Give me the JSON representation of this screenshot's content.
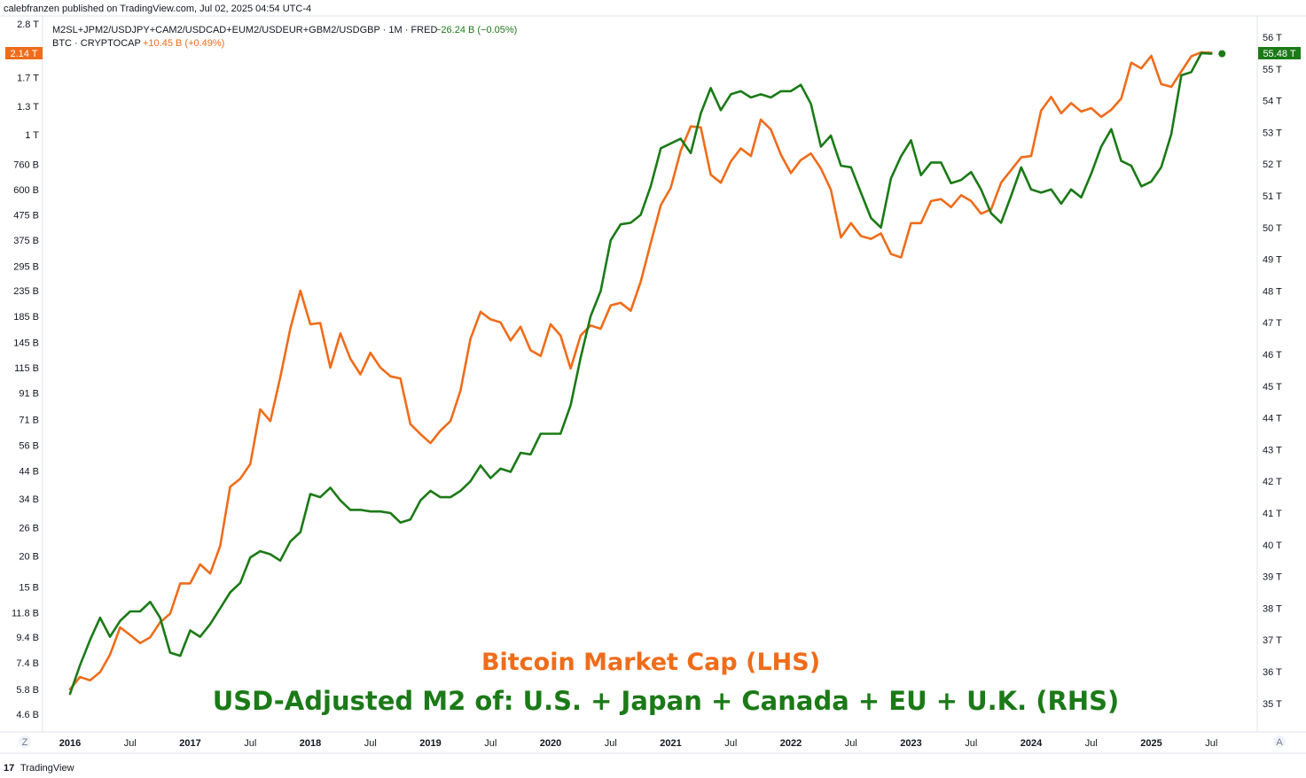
{
  "header": {
    "publish_line": "calebfranzen published on TradingView.com, Jul 02, 2025 04:54 UTC-4",
    "m2_symbol": "M2SL+JPM2/USDJPY+CAM2/USDCAD+EUM2/USDEUR+GBM2/USDGBP · 1M · FRED",
    "m2_change": "−26.24 B (−0.05%)",
    "btc_symbol": "BTC · CRYPTOCAP",
    "btc_change": "+10.45 B (+0.49%)"
  },
  "colors": {
    "btc": "#ef6c1a",
    "m2": "#1b7a17",
    "axis_text": "#131722"
  },
  "overlay": {
    "line1": "Bitcoin Market Cap (LHS)",
    "line2": "USD-Adjusted M2 of: U.S. + Japan + Canada + EU + U.K. (RHS)"
  },
  "footer": {
    "logo_mark": "17",
    "logo_text": "TradingView",
    "z_button": "Z",
    "a_button": "A"
  },
  "chart_data": {
    "type": "line",
    "title": "",
    "left_axis": {
      "scale": "log",
      "ticks": [
        "2.8 T",
        "1.7 T",
        "1.3 T",
        "1 T",
        "760 B",
        "600 B",
        "475 B",
        "375 B",
        "295 B",
        "235 B",
        "185 B",
        "145 B",
        "115 B",
        "91 B",
        "71 B",
        "56 B",
        "44 B",
        "34 B",
        "26 B",
        "20 B",
        "15 B",
        "11.8 B",
        "9.4 B",
        "7.4 B",
        "5.8 B",
        "4.6 B"
      ],
      "tick_values": [
        2800,
        1700,
        1300,
        1000,
        760,
        600,
        475,
        375,
        295,
        235,
        185,
        145,
        115,
        91,
        71,
        56,
        44,
        34,
        26,
        20,
        15,
        11.8,
        9.4,
        7.4,
        5.8,
        4.6
      ],
      "last_value_label": "2.14 T"
    },
    "right_axis": {
      "scale": "linear",
      "ticks": [
        "56 T",
        "55 T",
        "54 T",
        "53 T",
        "52 T",
        "51 T",
        "50 T",
        "49 T",
        "48 T",
        "47 T",
        "46 T",
        "45 T",
        "44 T",
        "43 T",
        "42 T",
        "41 T",
        "40 T",
        "39 T",
        "38 T",
        "37 T",
        "36 T",
        "35 T"
      ],
      "tick_values": [
        56,
        55,
        54,
        53,
        52,
        51,
        50,
        49,
        48,
        47,
        46,
        45,
        44,
        43,
        42,
        41,
        40,
        39,
        38,
        37,
        36,
        35
      ],
      "last_value_label": "55.48 T"
    },
    "x_axis": {
      "labels": [
        "2016",
        "Jul",
        "2017",
        "Jul",
        "2018",
        "Jul",
        "2019",
        "Jul",
        "2020",
        "Jul",
        "2021",
        "Jul",
        "2022",
        "Jul",
        "2023",
        "Jul",
        "2024",
        "Jul",
        "2025",
        "Jul"
      ],
      "label_dates": [
        2016.0,
        2016.5,
        2017.0,
        2017.5,
        2018.0,
        2018.5,
        2019.0,
        2019.5,
        2020.0,
        2020.5,
        2021.0,
        2021.5,
        2022.0,
        2022.5,
        2023.0,
        2023.5,
        2024.0,
        2024.5,
        2025.0,
        2025.5
      ],
      "year_labels": [
        "2016",
        "2017",
        "2018",
        "2019",
        "2020",
        "2021",
        "2022",
        "2023",
        "2024",
        "2025"
      ]
    },
    "series": [
      {
        "name": "BTC · CRYPTOCAP",
        "axis": "left",
        "unit": "B",
        "x": [
          2016.0,
          2016.083,
          2016.167,
          2016.25,
          2016.333,
          2016.417,
          2016.5,
          2016.583,
          2016.667,
          2016.75,
          2016.833,
          2016.917,
          2017.0,
          2017.083,
          2017.167,
          2017.25,
          2017.333,
          2017.417,
          2017.5,
          2017.583,
          2017.667,
          2017.75,
          2017.833,
          2017.917,
          2018.0,
          2018.083,
          2018.167,
          2018.25,
          2018.333,
          2018.417,
          2018.5,
          2018.583,
          2018.667,
          2018.75,
          2018.833,
          2018.917,
          2019.0,
          2019.083,
          2019.167,
          2019.25,
          2019.333,
          2019.417,
          2019.5,
          2019.583,
          2019.667,
          2019.75,
          2019.833,
          2019.917,
          2020.0,
          2020.083,
          2020.167,
          2020.25,
          2020.333,
          2020.417,
          2020.5,
          2020.583,
          2020.667,
          2020.75,
          2020.833,
          2020.917,
          2021.0,
          2021.083,
          2021.167,
          2021.25,
          2021.333,
          2021.417,
          2021.5,
          2021.583,
          2021.667,
          2021.75,
          2021.833,
          2021.917,
          2022.0,
          2022.083,
          2022.167,
          2022.25,
          2022.333,
          2022.417,
          2022.5,
          2022.583,
          2022.667,
          2022.75,
          2022.833,
          2022.917,
          2023.0,
          2023.083,
          2023.167,
          2023.25,
          2023.333,
          2023.417,
          2023.5,
          2023.583,
          2023.667,
          2023.75,
          2023.833,
          2023.917,
          2024.0,
          2024.083,
          2024.167,
          2024.25,
          2024.333,
          2024.417,
          2024.5,
          2024.583,
          2024.667,
          2024.75,
          2024.833,
          2024.917,
          2025.0,
          2025.083,
          2025.167,
          2025.25,
          2025.333,
          2025.417,
          2025.5
        ],
        "values": [
          5.8,
          6.5,
          6.3,
          6.8,
          8.0,
          10.3,
          9.6,
          8.9,
          9.4,
          10.8,
          11.7,
          15.5,
          15.5,
          18.5,
          17.0,
          22.0,
          38.0,
          41.0,
          47.0,
          78.0,
          70.0,
          105.0,
          165.0,
          235.0,
          172.0,
          174.0,
          115.0,
          158.0,
          125.0,
          108.0,
          132.0,
          115.0,
          106.0,
          104.0,
          68.0,
          62.0,
          57.0,
          64.0,
          70.0,
          93.0,
          150.0,
          193.0,
          180.0,
          175.0,
          148.0,
          168.0,
          135.0,
          128.0,
          172.0,
          155.0,
          114.0,
          155.0,
          170.0,
          165.0,
          205.0,
          210.0,
          195.0,
          255.0,
          365.0,
          520.0,
          610.0,
          860.0,
          1080.0,
          1070.0,
          690.0,
          640.0,
          780.0,
          880.0,
          820.0,
          1150.0,
          1050.0,
          830.0,
          700.0,
          790.0,
          840.0,
          730.0,
          600.0,
          385.0,
          440.0,
          390.0,
          380.0,
          400.0,
          330.0,
          320.0,
          440.0,
          440.0,
          540.0,
          550.0,
          510.0,
          570.0,
          540.0,
          480.0,
          500.0,
          640.0,
          720.0,
          810.0,
          820.0,
          1250.0,
          1420.0,
          1220.0,
          1340.0,
          1240.0,
          1280.0,
          1180.0,
          1260.0,
          1400.0,
          1950.0,
          1850.0,
          2080.0,
          1600.0,
          1560.0,
          1800.0,
          2070.0,
          2150.0,
          2140.0
        ]
      },
      {
        "name": "M2SL+JPM2/USDJPY+CAM2/USDCAD+EUM2/USDEUR+GBM2/USDGBP · 1M · FRED",
        "axis": "right",
        "unit": "T",
        "x": [
          2016.0,
          2016.083,
          2016.167,
          2016.25,
          2016.333,
          2016.417,
          2016.5,
          2016.583,
          2016.667,
          2016.75,
          2016.833,
          2016.917,
          2017.0,
          2017.083,
          2017.167,
          2017.25,
          2017.333,
          2017.417,
          2017.5,
          2017.583,
          2017.667,
          2017.75,
          2017.833,
          2017.917,
          2018.0,
          2018.083,
          2018.167,
          2018.25,
          2018.333,
          2018.417,
          2018.5,
          2018.583,
          2018.667,
          2018.75,
          2018.833,
          2018.917,
          2019.0,
          2019.083,
          2019.167,
          2019.25,
          2019.333,
          2019.417,
          2019.5,
          2019.583,
          2019.667,
          2019.75,
          2019.833,
          2019.917,
          2020.0,
          2020.083,
          2020.167,
          2020.25,
          2020.333,
          2020.417,
          2020.5,
          2020.583,
          2020.667,
          2020.75,
          2020.833,
          2020.917,
          2021.0,
          2021.083,
          2021.167,
          2021.25,
          2021.333,
          2021.417,
          2021.5,
          2021.583,
          2021.667,
          2021.75,
          2021.833,
          2021.917,
          2022.0,
          2022.083,
          2022.167,
          2022.25,
          2022.333,
          2022.417,
          2022.5,
          2022.583,
          2022.667,
          2022.75,
          2022.833,
          2022.917,
          2023.0,
          2023.083,
          2023.167,
          2023.25,
          2023.333,
          2023.417,
          2023.5,
          2023.583,
          2023.667,
          2023.75,
          2023.833,
          2023.917,
          2024.0,
          2024.083,
          2024.167,
          2024.25,
          2024.333,
          2024.417,
          2024.5,
          2024.583,
          2024.667,
          2024.75,
          2024.833,
          2024.917,
          2025.0,
          2025.083,
          2025.167,
          2025.25,
          2025.333,
          2025.417,
          2025.5
        ],
        "values": [
          35.3,
          36.2,
          37.0,
          37.7,
          37.1,
          37.6,
          37.9,
          37.9,
          38.2,
          37.7,
          36.6,
          36.5,
          37.3,
          37.1,
          37.5,
          38.0,
          38.5,
          38.8,
          39.6,
          39.8,
          39.7,
          39.5,
          40.1,
          40.4,
          41.6,
          41.5,
          41.8,
          41.4,
          41.1,
          41.1,
          41.05,
          41.05,
          41.0,
          40.7,
          40.8,
          41.4,
          41.7,
          41.5,
          41.5,
          41.7,
          42.0,
          42.5,
          42.1,
          42.4,
          42.3,
          42.9,
          42.85,
          43.5,
          43.5,
          43.5,
          44.4,
          45.9,
          47.2,
          48.0,
          49.6,
          50.1,
          50.15,
          50.4,
          51.3,
          52.5,
          52.65,
          52.8,
          52.35,
          53.6,
          54.4,
          53.7,
          54.2,
          54.3,
          54.1,
          54.2,
          54.1,
          54.3,
          54.3,
          54.5,
          53.9,
          52.55,
          52.9,
          51.95,
          51.9,
          51.1,
          50.3,
          50.0,
          51.55,
          52.25,
          52.75,
          51.65,
          52.05,
          52.05,
          51.4,
          51.5,
          51.75,
          51.2,
          50.45,
          50.15,
          51.0,
          51.9,
          51.2,
          51.1,
          51.2,
          50.75,
          51.2,
          50.95,
          51.7,
          52.55,
          53.1,
          52.1,
          51.95,
          51.3,
          51.45,
          51.9,
          52.95,
          54.8,
          54.9,
          55.5,
          55.48
        ]
      }
    ]
  }
}
